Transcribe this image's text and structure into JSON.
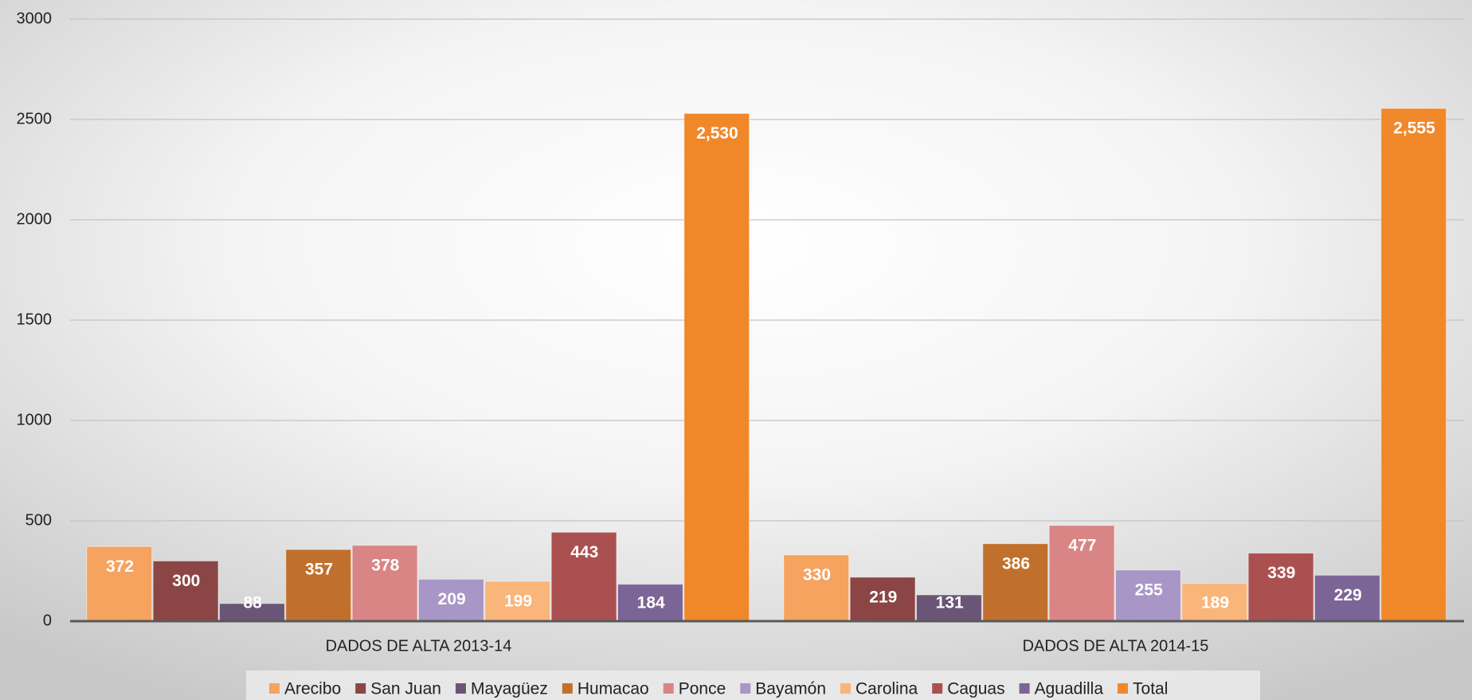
{
  "chart_data": {
    "type": "bar",
    "categories": [
      "DADOS DE ALTA 2013-14",
      "DADOS DE ALTA 2014-15"
    ],
    "series": [
      {
        "name": "Arecibo",
        "color": "#f5a35f",
        "values": [
          372,
          330
        ]
      },
      {
        "name": "San Juan",
        "color": "#8b4545",
        "values": [
          300,
          219
        ]
      },
      {
        "name": "Mayagüez",
        "color": "#6b5577",
        "values": [
          88,
          131
        ]
      },
      {
        "name": "Humacao",
        "color": "#c0702c",
        "values": [
          357,
          386
        ]
      },
      {
        "name": "Ponce",
        "color": "#d98585",
        "values": [
          378,
          477
        ]
      },
      {
        "name": "Bayamón",
        "color": "#a896c6",
        "values": [
          209,
          255
        ]
      },
      {
        "name": "Carolina",
        "color": "#f9b57a",
        "values": [
          199,
          189
        ]
      },
      {
        "name": "Caguas",
        "color": "#ab5050",
        "values": [
          443,
          339
        ]
      },
      {
        "name": "Aguadilla",
        "color": "#7b6496",
        "values": [
          184,
          229
        ]
      },
      {
        "name": "Total",
        "color": "#f0882a",
        "values": [
          2530,
          2555
        ],
        "value_labels": [
          "2,530",
          "2,555"
        ]
      }
    ],
    "ylim": [
      0,
      3000
    ],
    "yticks": [
      0,
      500,
      1000,
      1500,
      2000,
      2500,
      3000
    ],
    "grid": true,
    "legend": "bottom"
  }
}
